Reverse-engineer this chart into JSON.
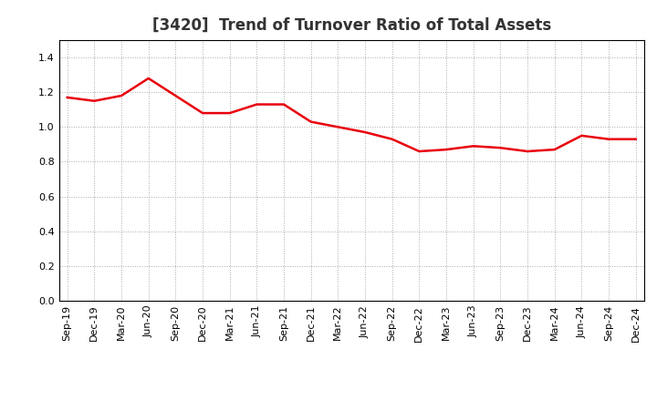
{
  "title": "[3420]  Trend of Turnover Ratio of Total Assets",
  "labels": [
    "Sep-19",
    "Dec-19",
    "Mar-20",
    "Jun-20",
    "Sep-20",
    "Dec-20",
    "Mar-21",
    "Jun-21",
    "Sep-21",
    "Dec-21",
    "Mar-22",
    "Jun-22",
    "Sep-22",
    "Dec-22",
    "Mar-23",
    "Jun-23",
    "Sep-23",
    "Dec-23",
    "Mar-24",
    "Jun-24",
    "Sep-24",
    "Dec-24"
  ],
  "values": [
    1.17,
    1.15,
    1.18,
    1.28,
    1.18,
    1.08,
    1.08,
    1.13,
    1.13,
    1.03,
    1.0,
    0.97,
    0.93,
    0.86,
    0.87,
    0.89,
    0.88,
    0.86,
    0.87,
    0.95,
    0.93,
    0.93
  ],
  "line_color": "#e8000d",
  "line_width": 1.8,
  "ylim": [
    0.0,
    1.5
  ],
  "yticks": [
    0.0,
    0.2,
    0.4,
    0.6,
    0.8,
    1.0,
    1.2,
    1.4
  ],
  "grid_color": "#aaaaaa",
  "grid_linestyle": ":",
  "grid_linewidth": 0.7,
  "background_color": "#ffffff",
  "title_fontsize": 12,
  "tick_fontsize": 8,
  "title_color": "#333333",
  "border_color": "#000000"
}
